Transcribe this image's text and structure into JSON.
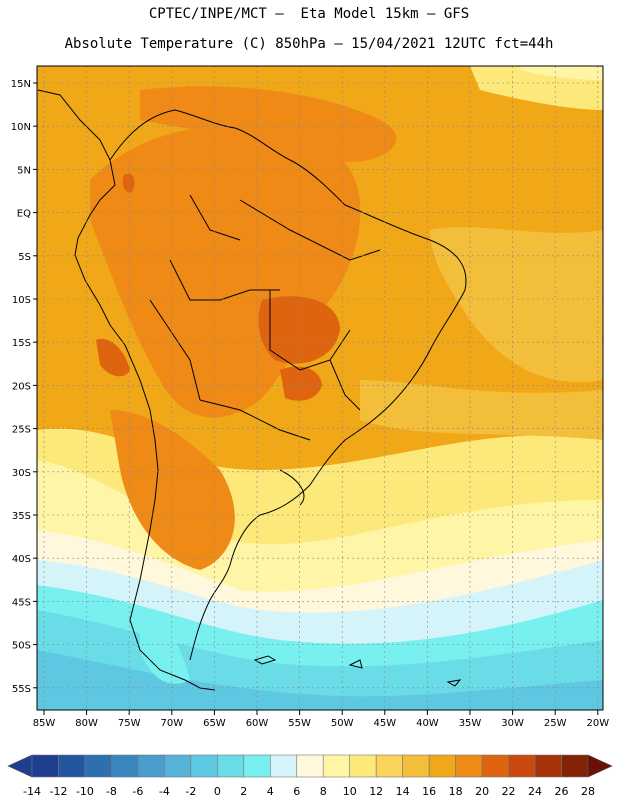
{
  "header": {
    "title_line1": "CPTEC/INPE/MCT –  Eta Model 15km – GFS",
    "title_line2": "Absolute Temperature (C) 850hPa – 15/04/2021 12UTC fct=44h"
  },
  "map": {
    "lon_labels": [
      "85W",
      "80W",
      "75W",
      "70W",
      "65W",
      "60W",
      "55W",
      "50W",
      "45W",
      "40W",
      "35W",
      "30W",
      "25W",
      "20W"
    ],
    "lat_labels": [
      "15N",
      "10N",
      "5N",
      "EQ",
      "5S",
      "10S",
      "15S",
      "20S",
      "25S",
      "30S",
      "35S",
      "40S",
      "45S",
      "50S",
      "55S"
    ]
  },
  "colorbar": {
    "labels": [
      "-14",
      "-12",
      "-10",
      "-8",
      "-6",
      "-4",
      "-2",
      "0",
      "2",
      "4",
      "6",
      "8",
      "10",
      "12",
      "14",
      "16",
      "18",
      "20",
      "22",
      "24",
      "26",
      "28"
    ],
    "colors": [
      "#1e3f8f",
      "#2456a0",
      "#2e6fb0",
      "#3a86bf",
      "#4a9ccc",
      "#56b3d8",
      "#5ec8e2",
      "#6adce8",
      "#79f0f0",
      "#d4f4fa",
      "#fff8dc",
      "#fef5a6",
      "#fde87a",
      "#f9d35a",
      "#f3bf3a",
      "#f0a818",
      "#ef8a17",
      "#de6410",
      "#c94a0c",
      "#a8330a",
      "#842208"
    ]
  }
}
